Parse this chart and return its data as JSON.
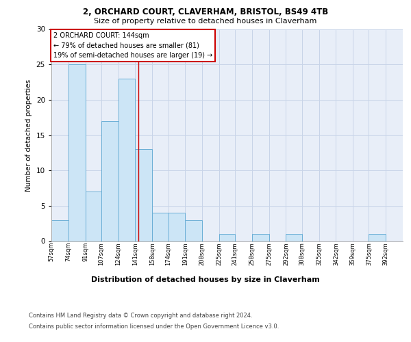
{
  "title_line1": "2, ORCHARD COURT, CLAVERHAM, BRISTOL, BS49 4TB",
  "title_line2": "Size of property relative to detached houses in Claverham",
  "xlabel": "Distribution of detached houses by size in Claverham",
  "ylabel": "Number of detached properties",
  "bins": [
    "57sqm",
    "74sqm",
    "91sqm",
    "107sqm",
    "124sqm",
    "141sqm",
    "158sqm",
    "174sqm",
    "191sqm",
    "208sqm",
    "225sqm",
    "241sqm",
    "258sqm",
    "275sqm",
    "292sqm",
    "308sqm",
    "325sqm",
    "342sqm",
    "359sqm",
    "375sqm",
    "392sqm"
  ],
  "values": [
    3,
    25,
    7,
    17,
    23,
    13,
    4,
    4,
    3,
    0,
    1,
    0,
    1,
    0,
    1,
    0,
    0,
    0,
    0,
    1,
    0
  ],
  "bar_color": "#cce5f6",
  "bar_edge_color": "#6aaed6",
  "property_size": 144,
  "red_line_color": "#cc0000",
  "annotation_line1": "2 ORCHARD COURT: 144sqm",
  "annotation_line2": "← 79% of detached houses are smaller (81)",
  "annotation_line3": "19% of semi-detached houses are larger (19) →",
  "annotation_box_color": "#ffffff",
  "annotation_box_edge": "#cc0000",
  "ylim": [
    0,
    30
  ],
  "yticks": [
    0,
    5,
    10,
    15,
    20,
    25,
    30
  ],
  "grid_color": "#c8d4e8",
  "background_color": "#e8eef8",
  "footer_line1": "Contains HM Land Registry data © Crown copyright and database right 2024.",
  "footer_line2": "Contains public sector information licensed under the Open Government Licence v3.0.",
  "bin_starts": [
    57,
    74,
    91,
    107,
    124,
    141,
    158,
    174,
    191,
    208,
    225,
    241,
    258,
    275,
    292,
    308,
    325,
    342,
    359,
    375,
    392
  ]
}
